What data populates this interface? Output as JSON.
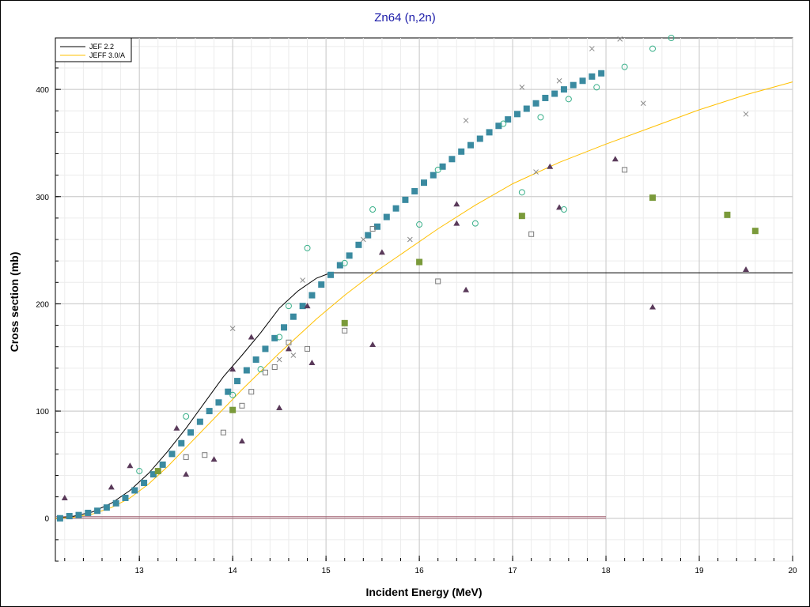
{
  "title": "Zn64 (n,2n)",
  "chart_data": {
    "type": "scatter",
    "title": "Zn64 (n,2n)",
    "xlabel": "Incident Energy (MeV)",
    "ylabel": "Cross section (mb)",
    "xlim": [
      12.1,
      20
    ],
    "ylim": [
      -40,
      448
    ],
    "xticks": [
      "13",
      "14",
      "15",
      "16",
      "17",
      "18",
      "19",
      "20"
    ],
    "yticks": [
      "0",
      "100",
      "200",
      "300",
      "400"
    ],
    "grid": true,
    "legend_position": "top-left",
    "series": [
      {
        "name": "JEF 2.2",
        "kind": "line",
        "color": "#000000",
        "x": [
          12.1,
          12.3,
          12.5,
          12.7,
          12.9,
          13.1,
          13.3,
          13.5,
          13.7,
          13.9,
          14.1,
          14.3,
          14.5,
          14.7,
          14.9,
          15.05,
          15.2,
          16.0,
          18.0,
          20.0
        ],
        "y": [
          0,
          2,
          6,
          14,
          26,
          42,
          62,
          84,
          108,
          132,
          152,
          173,
          196,
          212,
          224,
          229,
          229,
          229,
          229,
          229
        ]
      },
      {
        "name": "JEFF 3.0/A",
        "kind": "line",
        "color": "#ffc000",
        "x": [
          12.1,
          12.3,
          12.5,
          12.7,
          12.9,
          13.1,
          13.3,
          13.5,
          13.7,
          13.9,
          14.1,
          14.3,
          14.5,
          14.7,
          14.9,
          15.2,
          15.5,
          15.8,
          16.2,
          16.6,
          17.0,
          17.5,
          18.0,
          18.5,
          19.0,
          19.5,
          20.0
        ],
        "y": [
          0,
          1,
          4,
          10,
          19,
          32,
          48,
          66,
          84,
          102,
          120,
          137,
          154,
          170,
          186,
          208,
          228,
          246,
          270,
          292,
          312,
          332,
          349,
          365,
          381,
          395,
          407
        ]
      },
      {
        "kind": "markers",
        "symbol": "square-filled",
        "color": "#3a8aa0",
        "x": [
          12.15,
          12.25,
          12.35,
          12.45,
          12.55,
          12.65,
          12.75,
          12.85,
          12.95,
          13.05,
          13.15,
          13.25,
          13.35,
          13.45,
          13.55,
          13.65,
          13.75,
          13.85,
          13.95,
          14.05,
          14.15,
          14.25,
          14.35,
          14.45,
          14.55,
          14.65,
          14.75,
          14.85,
          14.95,
          15.05,
          15.15,
          15.25,
          15.35,
          15.45,
          15.55,
          15.65,
          15.75,
          15.85,
          15.95,
          16.05,
          16.15,
          16.25,
          16.35,
          16.45,
          16.55,
          16.65,
          16.75,
          16.85,
          16.95,
          17.05,
          17.15,
          17.25,
          17.35,
          17.45,
          17.55,
          17.65,
          17.75,
          17.85,
          17.95
        ],
        "y": [
          0,
          2,
          3,
          5,
          7,
          10,
          14,
          19,
          26,
          33,
          41,
          50,
          60,
          70,
          80,
          90,
          100,
          108,
          118,
          128,
          138,
          148,
          158,
          168,
          178,
          188,
          198,
          208,
          218,
          227,
          236,
          245,
          255,
          264,
          272,
          281,
          289,
          297,
          305,
          313,
          320,
          328,
          335,
          342,
          348,
          354,
          360,
          366,
          372,
          377,
          382,
          387,
          392,
          396,
          400,
          404,
          408,
          412,
          415
        ]
      },
      {
        "kind": "markers",
        "symbol": "triangle-filled",
        "color": "#5a3a5a",
        "x": [
          12.2,
          12.7,
          12.9,
          13.4,
          13.5,
          13.8,
          14.0,
          14.1,
          14.2,
          14.5,
          14.6,
          14.8,
          14.85,
          15.5,
          15.6,
          16.4,
          16.4,
          16.5,
          17.4,
          17.5,
          18.1,
          18.5,
          19.5
        ],
        "y": [
          19,
          29,
          49,
          84,
          41,
          55,
          139,
          72,
          169,
          103,
          158,
          198,
          145,
          162,
          248,
          293,
          275,
          213,
          328,
          290,
          335,
          197,
          232
        ]
      },
      {
        "kind": "markers",
        "symbol": "square-filled-olive",
        "color": "#7a9a3a",
        "x": [
          13.2,
          14.0,
          15.2,
          16.0,
          17.1,
          18.5,
          19.3,
          19.6
        ],
        "y": [
          44,
          101,
          182,
          239,
          282,
          299,
          283,
          268
        ]
      },
      {
        "kind": "markers",
        "symbol": "circle-open",
        "color": "#3ab08a",
        "x": [
          13.0,
          13.5,
          14.0,
          14.3,
          14.5,
          14.6,
          14.8,
          15.2,
          15.5,
          16.0,
          16.2,
          16.6,
          16.9,
          17.1,
          17.3,
          17.55,
          17.6,
          17.9,
          18.2,
          18.5,
          18.7
        ],
        "y": [
          44,
          95,
          115,
          139,
          169,
          198,
          252,
          238,
          288,
          274,
          325,
          275,
          368,
          304,
          374,
          288,
          391,
          402,
          421,
          438,
          448
        ]
      },
      {
        "kind": "markers",
        "symbol": "square-open",
        "color": "#7a7a7a",
        "x": [
          13.5,
          13.7,
          13.9,
          14.1,
          14.2,
          14.35,
          14.45,
          14.6,
          14.8,
          15.2,
          15.5,
          16.2,
          17.2,
          18.2
        ],
        "y": [
          57,
          59,
          80,
          105,
          118,
          136,
          141,
          164,
          158,
          175,
          270,
          221,
          265,
          325
        ]
      },
      {
        "kind": "markers",
        "symbol": "cross",
        "color": "#8a8a8a",
        "x": [
          14.0,
          14.5,
          14.65,
          14.75,
          15.4,
          16.5,
          17.1,
          17.5,
          17.85,
          18.15,
          19.5,
          18.4,
          15.9,
          17.25
        ],
        "y": [
          177,
          148,
          152,
          222,
          260,
          371,
          402,
          408,
          438,
          447,
          377,
          387,
          260,
          323
        ]
      }
    ]
  }
}
